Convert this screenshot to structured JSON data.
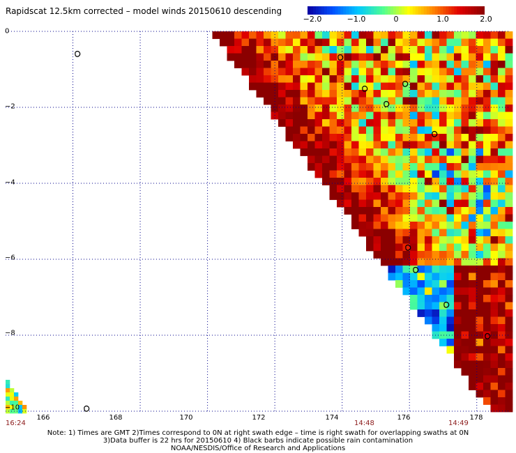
{
  "title": "Rapidscat 12.5km corrected – model winds 20150610 descending",
  "colorbar": {
    "labels": [
      "−2.0",
      "−1.0",
      "0",
      "1.0",
      "2.0"
    ],
    "values": [
      -2.0,
      -1.0,
      0,
      1.0,
      2.0
    ],
    "range": [
      -2.0,
      2.0
    ],
    "colors": [
      "#0a00a0",
      "#0050ff",
      "#00c8ff",
      "#50ff90",
      "#ffff00",
      "#ff8000",
      "#e00000",
      "#8b0000"
    ]
  },
  "axes": {
    "x_tick_labels": [
      "166",
      "168",
      "170",
      "172",
      "174",
      "176",
      "178"
    ],
    "x_values": [
      166,
      168,
      170,
      172,
      174,
      176,
      178
    ],
    "y_tick_labels": [
      "0",
      "−2",
      "−4",
      "−6",
      "−8",
      "−10"
    ],
    "y_values": [
      0,
      -2,
      -4,
      -6,
      -8,
      -10
    ],
    "lon_range": [
      164,
      179
    ],
    "lat_range": [
      -10,
      0
    ]
  },
  "times": {
    "left": "16:24",
    "mid": "14:48",
    "right": "14:49"
  },
  "notes": {
    "line1": "Note: 1) Times are GMT 2)Times correspond to 0N at right swath edge – time is right swath for overlapping swaths at 0N",
    "line2": "3)Data buffer is 22 hrs for 20150610 4) Black barbs indicate possible rain contamination",
    "line3": "NOAA/NESDIS/Office of Research and Applications"
  },
  "colors": {
    "grid": "#00008b",
    "time_label": "#8b1a1a",
    "land": "#000000"
  }
}
